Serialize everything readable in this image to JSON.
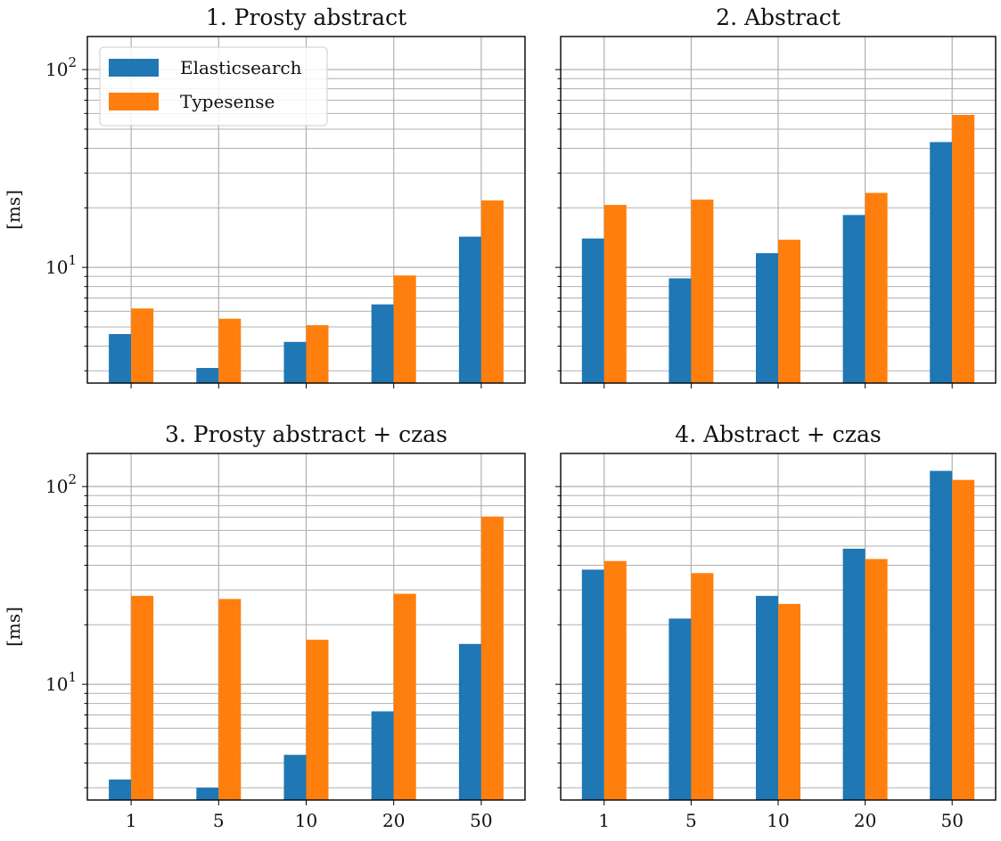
{
  "chart_data": [
    {
      "type": "bar",
      "title": "1. Prosty abstract",
      "ylabel": "[ms]",
      "yscale": "log",
      "ylim": [
        2.6,
        150
      ],
      "categories": [
        "1",
        "5",
        "10",
        "20",
        "50"
      ],
      "series": [
        {
          "name": "Elasticsearch",
          "values": [
            4.6,
            3.1,
            4.2,
            6.5,
            14.3
          ]
        },
        {
          "name": "Typesense",
          "values": [
            6.2,
            5.5,
            5.1,
            9.1,
            21.8
          ]
        }
      ],
      "grid": true,
      "legend": "top-left"
    },
    {
      "type": "bar",
      "title": "2. Abstract",
      "ylabel": "",
      "yscale": "log",
      "ylim": [
        2.6,
        150
      ],
      "categories": [
        "1",
        "5",
        "10",
        "20",
        "50"
      ],
      "series": [
        {
          "name": "Elasticsearch",
          "values": [
            14.0,
            8.8,
            11.8,
            18.4,
            43.0
          ]
        },
        {
          "name": "Typesense",
          "values": [
            20.7,
            22.0,
            13.8,
            23.8,
            59.0
          ]
        }
      ],
      "grid": true
    },
    {
      "type": "bar",
      "title": "3. Prosty abstract + czas",
      "ylabel": "[ms]",
      "yscale": "log",
      "ylim": [
        2.6,
        150
      ],
      "categories": [
        "1",
        "5",
        "10",
        "20",
        "50"
      ],
      "series": [
        {
          "name": "Elasticsearch",
          "values": [
            3.3,
            3.0,
            4.4,
            7.3,
            16.0
          ]
        },
        {
          "name": "Typesense",
          "values": [
            28.0,
            27.0,
            16.8,
            28.7,
            70.5
          ]
        }
      ],
      "grid": true
    },
    {
      "type": "bar",
      "title": "4. Abstract + czas",
      "ylabel": "",
      "yscale": "log",
      "ylim": [
        2.6,
        150
      ],
      "categories": [
        "1",
        "5",
        "10",
        "20",
        "50"
      ],
      "series": [
        {
          "name": "Elasticsearch",
          "values": [
            38.0,
            21.5,
            28.0,
            48.5,
            120.0
          ]
        },
        {
          "name": "Typesense",
          "values": [
            42.0,
            36.5,
            25.5,
            43.0,
            108.0
          ]
        }
      ],
      "grid": true
    }
  ],
  "legend": {
    "items": [
      {
        "label": "Elasticsearch",
        "color": "#1f77b4"
      },
      {
        "label": "Typesense",
        "color": "#ff7f0e"
      }
    ]
  },
  "colors": {
    "series": [
      "#1f77b4",
      "#ff7f0e"
    ],
    "grid": "#b0b0b0"
  },
  "yticks": {
    "major": [
      1,
      10,
      100
    ],
    "major_labels": [
      "10^1",
      "10^2"
    ]
  }
}
